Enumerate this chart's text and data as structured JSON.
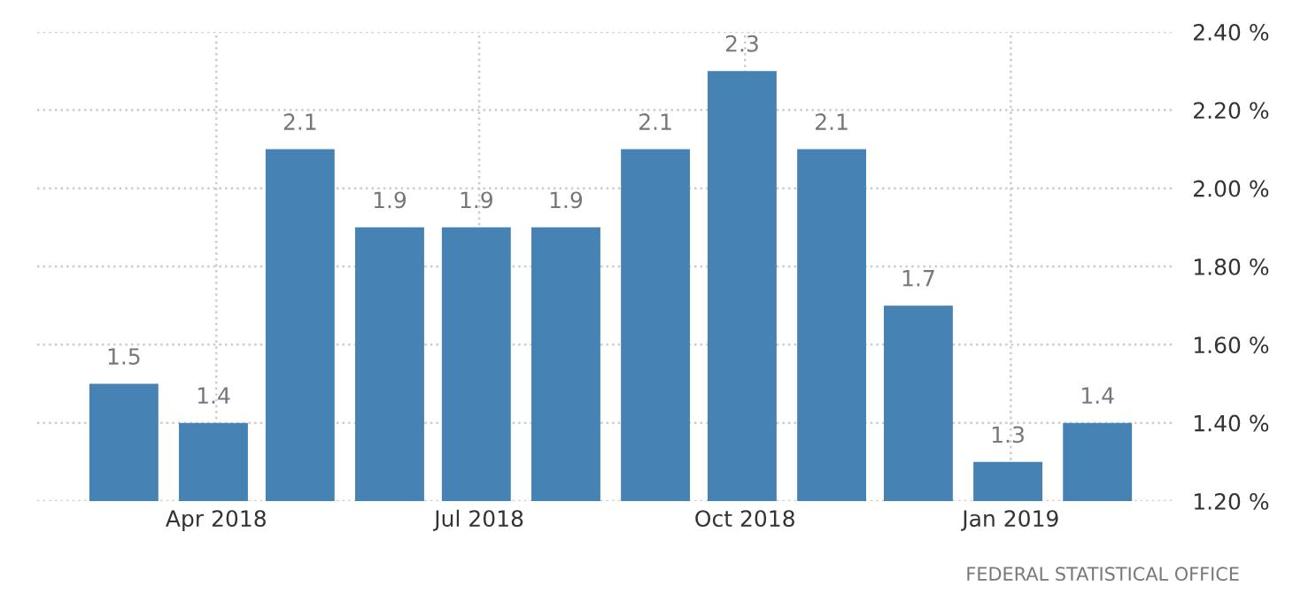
{
  "chart_data": {
    "type": "bar",
    "x": [
      "2018-02-28",
      "2018-03-31",
      "2018-04-30",
      "2018-05-31",
      "2018-06-30",
      "2018-07-31",
      "2018-08-31",
      "2018-09-30",
      "2018-10-31",
      "2018-11-30",
      "2018-12-31",
      "2019-01-31"
    ],
    "values": [
      1.5,
      1.4,
      2.1,
      1.9,
      1.9,
      1.9,
      2.1,
      2.3,
      2.1,
      1.7,
      1.3,
      1.4
    ],
    "color": "#4682b4",
    "data_labels": true,
    "xlim": [
      "2018-01-29",
      "2019-02-26"
    ],
    "xticks": [
      {
        "value": "2018-04-01",
        "label": "Apr 2018"
      },
      {
        "value": "2018-07-01",
        "label": "Jul 2018"
      },
      {
        "value": "2018-10-01",
        "label": "Oct 2018"
      },
      {
        "value": "2019-01-01",
        "label": "Jan 2019"
      }
    ],
    "ylim": [
      1.2,
      2.4
    ],
    "yticks": [
      {
        "value": 1.2,
        "label": "1.20 %"
      },
      {
        "value": 1.4,
        "label": "1.40 %"
      },
      {
        "value": 1.6,
        "label": "1.60 %"
      },
      {
        "value": 1.8,
        "label": "1.80 %"
      },
      {
        "value": 2.0,
        "label": "2.00 %"
      },
      {
        "value": 2.2,
        "label": "2.20 %"
      },
      {
        "value": 2.4,
        "label": "2.40 %"
      }
    ],
    "grid": true,
    "annotations": [
      "FEDERAL STATISTICAL OFFICE"
    ]
  }
}
